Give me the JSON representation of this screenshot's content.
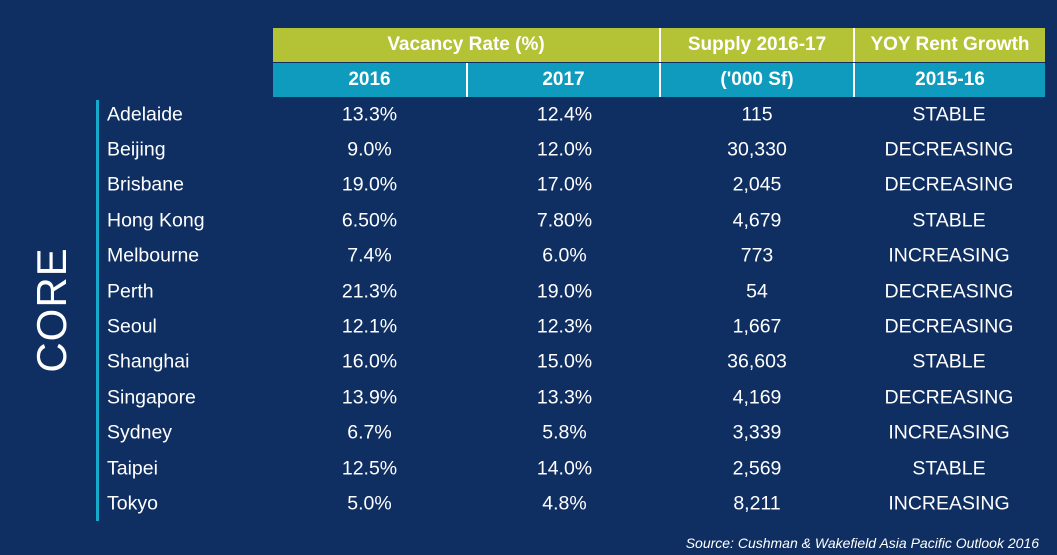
{
  "chart_data": {
    "type": "table",
    "group_label": "CORE",
    "header_groups": [
      {
        "label": "Vacancy Rate (%)",
        "span": 2
      },
      {
        "label": "Supply 2016-17",
        "span": 1
      },
      {
        "label": "YOY Rent Growth",
        "span": 1
      }
    ],
    "columns": [
      "2016",
      "2017",
      "('000 Sf)",
      "2015-16"
    ],
    "rows": [
      {
        "city": "Adelaide",
        "vac_2016": "13.3%",
        "vac_2017": "12.4%",
        "supply": "115",
        "rent_growth": "STABLE"
      },
      {
        "city": "Beijing",
        "vac_2016": "9.0%",
        "vac_2017": "12.0%",
        "supply": "30,330",
        "rent_growth": "DECREASING"
      },
      {
        "city": "Brisbane",
        "vac_2016": "19.0%",
        "vac_2017": "17.0%",
        "supply": "2,045",
        "rent_growth": "DECREASING"
      },
      {
        "city": "Hong Kong",
        "vac_2016": "6.50%",
        "vac_2017": "7.80%",
        "supply": "4,679",
        "rent_growth": "STABLE"
      },
      {
        "city": "Melbourne",
        "vac_2016": "7.4%",
        "vac_2017": "6.0%",
        "supply": "773",
        "rent_growth": "INCREASING"
      },
      {
        "city": "Perth",
        "vac_2016": "21.3%",
        "vac_2017": "19.0%",
        "supply": "54",
        "rent_growth": "DECREASING"
      },
      {
        "city": "Seoul",
        "vac_2016": "12.1%",
        "vac_2017": "12.3%",
        "supply": "1,667",
        "rent_growth": "DECREASING"
      },
      {
        "city": "Shanghai",
        "vac_2016": "16.0%",
        "vac_2017": "15.0%",
        "supply": "36,603",
        "rent_growth": "STABLE"
      },
      {
        "city": "Singapore",
        "vac_2016": "13.9%",
        "vac_2017": "13.3%",
        "supply": "4,169",
        "rent_growth": "DECREASING"
      },
      {
        "city": "Sydney",
        "vac_2016": "6.7%",
        "vac_2017": "5.8%",
        "supply": "3,339",
        "rent_growth": "INCREASING"
      },
      {
        "city": "Taipei",
        "vac_2016": "12.5%",
        "vac_2017": "14.0%",
        "supply": "2,569",
        "rent_growth": "STABLE"
      },
      {
        "city": "Tokyo",
        "vac_2016": "5.0%",
        "vac_2017": "4.8%",
        "supply": "8,211",
        "rent_growth": "INCREASING"
      }
    ],
    "source": "Source: Cushman & Wakefield Asia Pacific Outlook 2016"
  },
  "colors": {
    "background": "#0f2f63",
    "header_green": "#b4c336",
    "header_blue": "#0e9bbd",
    "accent_bar": "#17a9cc"
  }
}
